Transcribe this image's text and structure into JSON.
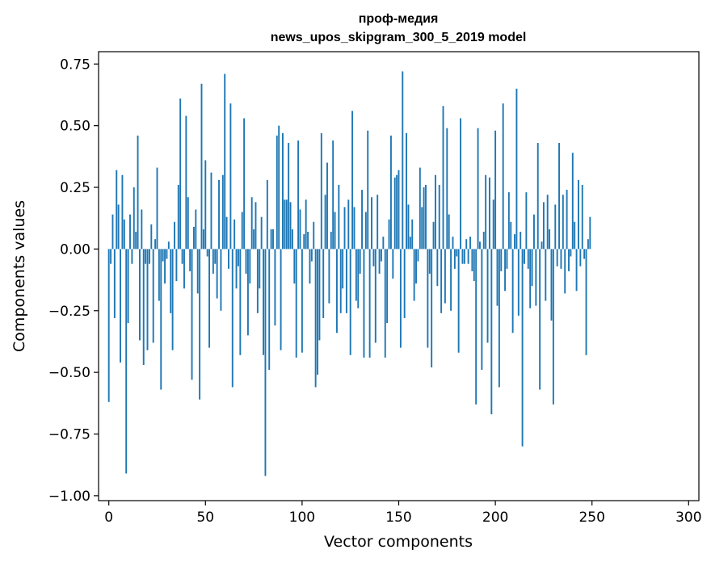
{
  "chart_data": {
    "type": "bar",
    "title_line1": "проф-медия",
    "title_line2": "news_upos_skipgram_300_5_2019 model",
    "xlabel": "Vector components",
    "ylabel": "Components values",
    "xlim": [
      -5.3,
      305.3
    ],
    "ylim": [
      -1.02,
      0.8
    ],
    "x_ticks": [
      {
        "value": 0,
        "label": "0"
      },
      {
        "value": 50,
        "label": "50"
      },
      {
        "value": 100,
        "label": "100"
      },
      {
        "value": 150,
        "label": "150"
      },
      {
        "value": 200,
        "label": "200"
      },
      {
        "value": 250,
        "label": "250"
      },
      {
        "value": 300,
        "label": "300"
      }
    ],
    "y_ticks": [
      {
        "value": 0.75,
        "label": "0.75"
      },
      {
        "value": 0.5,
        "label": "0.50"
      },
      {
        "value": 0.25,
        "label": "0.25"
      },
      {
        "value": 0.0,
        "label": "0.00"
      },
      {
        "value": -0.25,
        "label": "−0.25"
      },
      {
        "value": -0.5,
        "label": "−0.50"
      },
      {
        "value": -0.75,
        "label": "−0.75"
      },
      {
        "value": -1.0,
        "label": "−1.00"
      }
    ],
    "grid": false,
    "bar_color": "#1f77b4",
    "values": [
      -0.62,
      -0.06,
      0.14,
      -0.28,
      0.32,
      0.18,
      -0.46,
      0.3,
      0.12,
      -0.91,
      -0.3,
      0.14,
      -0.06,
      0.25,
      0.07,
      0.46,
      -0.37,
      0.16,
      -0.47,
      -0.06,
      -0.41,
      -0.06,
      0.1,
      -0.38,
      0.04,
      0.33,
      -0.21,
      -0.57,
      -0.05,
      -0.14,
      -0.04,
      0.03,
      -0.26,
      -0.41,
      0.11,
      -0.13,
      0.26,
      0.61,
      -0.06,
      -0.16,
      0.54,
      0.21,
      -0.09,
      -0.53,
      0.09,
      0.16,
      -0.18,
      -0.61,
      0.67,
      0.08,
      0.36,
      -0.03,
      -0.4,
      0.31,
      -0.1,
      -0.06,
      -0.2,
      0.28,
      -0.25,
      0.3,
      0.71,
      0.13,
      -0.08,
      0.59,
      -0.56,
      0.12,
      -0.16,
      -0.07,
      -0.43,
      0.15,
      0.53,
      -0.1,
      -0.35,
      -0.14,
      0.21,
      0.08,
      0.19,
      -0.26,
      -0.16,
      0.13,
      -0.43,
      -0.92,
      0.28,
      -0.49,
      0.08,
      0.08,
      -0.31,
      0.46,
      0.5,
      -0.41,
      0.47,
      0.2,
      0.2,
      0.43,
      0.19,
      0.08,
      -0.14,
      -0.44,
      0.44,
      0.16,
      -0.42,
      0.06,
      0.2,
      0.07,
      -0.14,
      -0.05,
      0.11,
      -0.56,
      -0.51,
      -0.37,
      0.47,
      -0.28,
      0.22,
      0.35,
      -0.22,
      0.07,
      0.44,
      0.15,
      -0.34,
      0.26,
      -0.26,
      -0.16,
      0.17,
      -0.26,
      0.2,
      -0.43,
      0.56,
      0.17,
      -0.21,
      -0.24,
      -0.1,
      0.24,
      -0.44,
      0.15,
      0.48,
      -0.44,
      0.21,
      -0.07,
      -0.38,
      0.22,
      -0.1,
      -0.05,
      0.05,
      -0.44,
      -0.3,
      0.12,
      0.46,
      -0.12,
      0.29,
      0.3,
      0.32,
      -0.4,
      0.72,
      -0.28,
      0.47,
      0.18,
      0.05,
      0.12,
      -0.21,
      -0.14,
      -0.05,
      0.33,
      0.17,
      0.25,
      0.26,
      -0.4,
      -0.1,
      -0.48,
      0.11,
      0.3,
      -0.15,
      0.26,
      -0.26,
      0.58,
      -0.22,
      0.49,
      0.14,
      -0.25,
      0.05,
      -0.08,
      -0.03,
      -0.42,
      0.53,
      -0.06,
      -0.06,
      0.04,
      -0.06,
      0.05,
      -0.09,
      -0.13,
      -0.63,
      0.49,
      0.03,
      -0.49,
      0.07,
      0.3,
      -0.38,
      0.29,
      -0.67,
      0.2,
      0.48,
      -0.23,
      -0.56,
      -0.09,
      0.59,
      -0.17,
      -0.08,
      0.23,
      0.11,
      -0.34,
      0.06,
      0.65,
      -0.27,
      0.07,
      -0.8,
      -0.06,
      0.23,
      -0.08,
      -0.24,
      -0.15,
      0.14,
      -0.23,
      0.43,
      -0.57,
      0.03,
      0.19,
      -0.21,
      0.22,
      0.08,
      -0.29,
      -0.63,
      0.18,
      -0.07,
      0.43,
      -0.08,
      0.22,
      -0.18,
      0.24,
      -0.09,
      -0.03,
      0.39,
      0.11,
      -0.17,
      0.28,
      -0.07,
      0.26,
      -0.04,
      -0.43,
      0.04,
      0.13
    ]
  }
}
